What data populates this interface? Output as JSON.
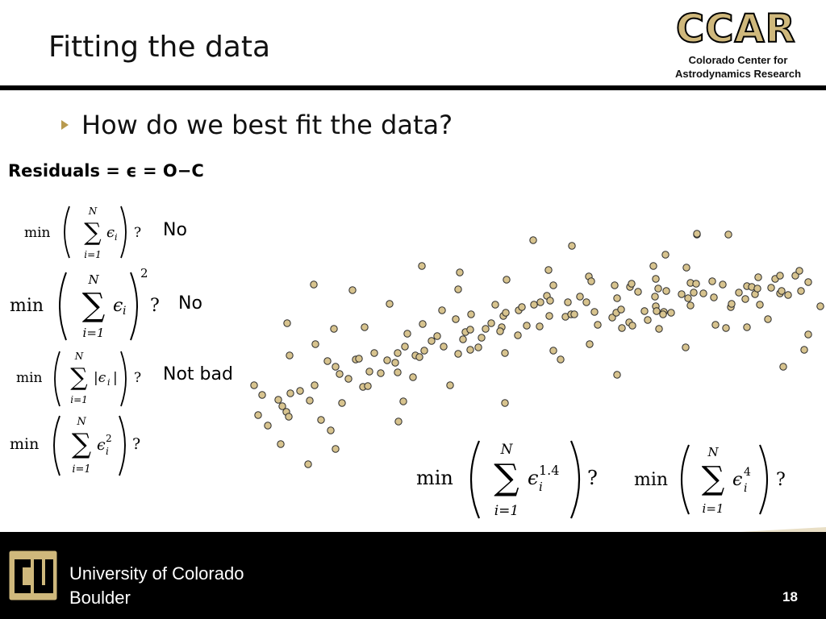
{
  "slide": {
    "title": "Fitting the data",
    "page_number": "18"
  },
  "logo": {
    "ccar": "CCAR",
    "ccar_line1": "Colorado Center for",
    "ccar_line2": "Astrodynamics Research"
  },
  "bullet": {
    "text": "How do we best fit the data?"
  },
  "residuals": {
    "label": "Residuals = ϵ = O−C"
  },
  "formulas": [
    {
      "min": "min",
      "sum_top": "N",
      "sum_bottom": "i=1",
      "expr": "ϵ",
      "sub": "i",
      "question": "?",
      "answer": "No"
    },
    {
      "min": "min",
      "sum_top": "N",
      "sum_bottom": "i=1",
      "expr": "ϵ",
      "sub": "i",
      "power": "2",
      "question": "?",
      "answer": "No"
    },
    {
      "min": "min",
      "sum_top": "N",
      "sum_bottom": "i=1",
      "expr": "|ϵ",
      "sub": "i",
      "expr_tail": "|",
      "question": "?",
      "answer": "Not bad"
    },
    {
      "min": "min",
      "sum_top": "N",
      "sum_bottom": "i=1",
      "expr": "ϵ",
      "sub": "i",
      "sup": "2",
      "question": "?"
    },
    {
      "min": "min",
      "sum_top": "N",
      "sum_bottom": "i=1",
      "expr": "ϵ",
      "sub": "i",
      "sup": "1.4",
      "question": "?"
    },
    {
      "min": "min",
      "sum_top": "N",
      "sum_bottom": "i=1",
      "expr": "ϵ",
      "sub": "i",
      "sup": "4",
      "question": "?"
    }
  ],
  "footer": {
    "university_line1": "University of Colorado",
    "university_line2": "Boulder"
  },
  "colors": {
    "gold": "#cfb87c",
    "dot_fill": "#d7c38e",
    "dot_stroke": "#2a2a2a",
    "footer_bg": "#000000",
    "bullet_arrow": "#b89a4e"
  },
  "chart_data": {
    "type": "scatter",
    "title": "",
    "xlabel": "",
    "ylabel": "",
    "grid": false,
    "points": [
      [
        15,
        218
      ],
      [
        25,
        230
      ],
      [
        20,
        255
      ],
      [
        32,
        268
      ],
      [
        45,
        236
      ],
      [
        50,
        244
      ],
      [
        55,
        251
      ],
      [
        58,
        257
      ],
      [
        48,
        291
      ],
      [
        60,
        228
      ],
      [
        72,
        225
      ],
      [
        82,
        316
      ],
      [
        84,
        237
      ],
      [
        90,
        218
      ],
      [
        98,
        261
      ],
      [
        110,
        274
      ],
      [
        116,
        297
      ],
      [
        124,
        240
      ],
      [
        56,
        141
      ],
      [
        59,
        181
      ],
      [
        89,
        93
      ],
      [
        91,
        167
      ],
      [
        106,
        188
      ],
      [
        114,
        148
      ],
      [
        116,
        195
      ],
      [
        121,
        204
      ],
      [
        132,
        210
      ],
      [
        137,
        100
      ],
      [
        141,
        186
      ],
      [
        145,
        185
      ],
      [
        150,
        220
      ],
      [
        152,
        146
      ],
      [
        156,
        219
      ],
      [
        158,
        201
      ],
      [
        164,
        178
      ],
      [
        172,
        203
      ],
      [
        180,
        187
      ],
      [
        183,
        117
      ],
      [
        190,
        190
      ],
      [
        193,
        202
      ],
      [
        194,
        263
      ],
      [
        193,
        178
      ],
      [
        200,
        238
      ],
      [
        202,
        170
      ],
      [
        205,
        154
      ],
      [
        212,
        208
      ],
      [
        215,
        181
      ],
      [
        220,
        183
      ],
      [
        226,
        175
      ],
      [
        223,
        70
      ],
      [
        224,
        142
      ],
      [
        235,
        163
      ],
      [
        242,
        157
      ],
      [
        250,
        170
      ],
      [
        248,
        125
      ],
      [
        258,
        218
      ],
      [
        265,
        136
      ],
      [
        268,
        179
      ],
      [
        268,
        99
      ],
      [
        270,
        78
      ],
      [
        274,
        161
      ],
      [
        277,
        152
      ],
      [
        283,
        149
      ],
      [
        284,
        130
      ],
      [
        283,
        174
      ],
      [
        293,
        171
      ],
      [
        297,
        159
      ],
      [
        302,
        148
      ],
      [
        309,
        141
      ],
      [
        314,
        118
      ],
      [
        322,
        146
      ],
      [
        326,
        178
      ],
      [
        324,
        132
      ],
      [
        328,
        87
      ],
      [
        320,
        151
      ],
      [
        326,
        240
      ],
      [
        327,
        128
      ],
      [
        343,
        125
      ],
      [
        342,
        156
      ],
      [
        347,
        121
      ],
      [
        353,
        144
      ],
      [
        362,
        118
      ],
      [
        361,
        38
      ],
      [
        370,
        115
      ],
      [
        369,
        145
      ],
      [
        378,
        107
      ],
      [
        381,
        132
      ],
      [
        386,
        94
      ],
      [
        380,
        75
      ],
      [
        382,
        113
      ],
      [
        386,
        175
      ],
      [
        395,
        186
      ],
      [
        401,
        133
      ],
      [
        404,
        115
      ],
      [
        408,
        130
      ],
      [
        412,
        130
      ],
      [
        409,
        45
      ],
      [
        419,
        108
      ],
      [
        427,
        115
      ],
      [
        430,
        83
      ],
      [
        431,
        167
      ],
      [
        433,
        89
      ],
      [
        437,
        127
      ],
      [
        441,
        143
      ],
      [
        459,
        134
      ],
      [
        465,
        205
      ],
      [
        465,
        110
      ],
      [
        462,
        94
      ],
      [
        464,
        128
      ],
      [
        470,
        124
      ],
      [
        471,
        147
      ],
      [
        480,
        140
      ],
      [
        484,
        144
      ],
      [
        481,
        96
      ],
      [
        483,
        92
      ],
      [
        491,
        102
      ],
      [
        499,
        126
      ],
      [
        503,
        137
      ],
      [
        513,
        86
      ],
      [
        512,
        108
      ],
      [
        510,
        70
      ],
      [
        513,
        120
      ],
      [
        516,
        98
      ],
      [
        514,
        126
      ],
      [
        517,
        148
      ],
      [
        523,
        127
      ],
      [
        522,
        130
      ],
      [
        526,
        101
      ],
      [
        525,
        56
      ],
      [
        532,
        128
      ],
      [
        545,
        105
      ],
      [
        550,
        171
      ],
      [
        553,
        110
      ],
      [
        551,
        72
      ],
      [
        556,
        119
      ],
      [
        556,
        91
      ],
      [
        560,
        103
      ],
      [
        564,
        31
      ],
      [
        563,
        92
      ],
      [
        564,
        30
      ],
      [
        572,
        104
      ],
      [
        583,
        89
      ],
      [
        585,
        109
      ],
      [
        587,
        143
      ],
      [
        596,
        93
      ],
      [
        603,
        31
      ],
      [
        606,
        121
      ],
      [
        607,
        117
      ],
      [
        600,
        147
      ],
      [
        616,
        103
      ],
      [
        624,
        111
      ],
      [
        626,
        95
      ],
      [
        626,
        146
      ],
      [
        632,
        96
      ],
      [
        636,
        105
      ],
      [
        639,
        98
      ],
      [
        640,
        84
      ],
      [
        642,
        118
      ],
      [
        652,
        136
      ],
      [
        656,
        97
      ],
      [
        661,
        86
      ],
      [
        667,
        82
      ],
      [
        667,
        104
      ],
      [
        669,
        101
      ],
      [
        671,
        195
      ],
      [
        677,
        106
      ],
      [
        686,
        82
      ],
      [
        691,
        76
      ],
      [
        693,
        101
      ],
      [
        697,
        174
      ],
      [
        702,
        90
      ],
      [
        702,
        155
      ],
      [
        717,
        120
      ]
    ]
  }
}
